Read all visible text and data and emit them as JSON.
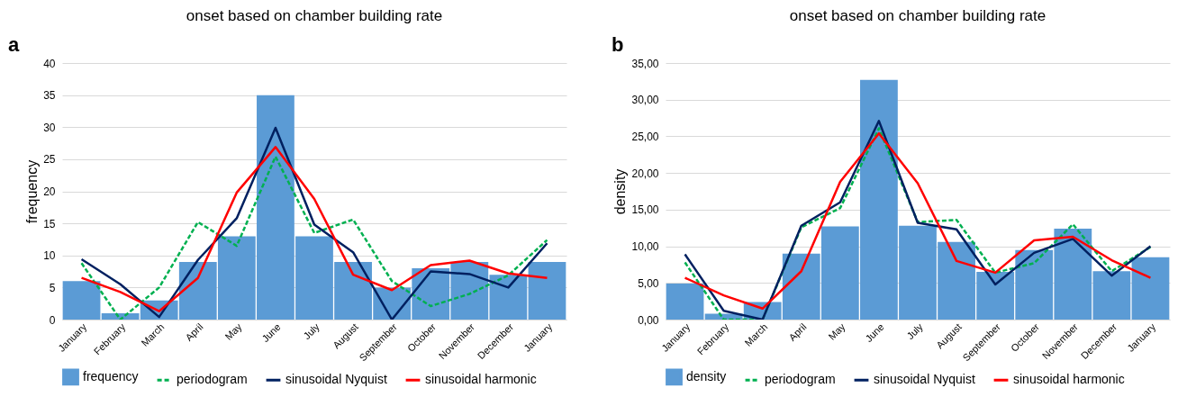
{
  "chart_data": [
    {
      "type": "bar",
      "title": "onset based on chamber building rate",
      "ylabel": "frequency",
      "annotations": [
        "a"
      ],
      "categories": [
        "January",
        "February",
        "March",
        "April",
        "May",
        "June",
        "July",
        "August",
        "September",
        "October",
        "November",
        "December",
        "January"
      ],
      "series": [
        {
          "name": "frequency",
          "color": "#5b9bd5",
          "values": [
            6,
            1,
            3,
            9,
            13,
            35,
            13,
            9,
            5,
            8,
            9,
            7,
            9
          ]
        },
        {
          "name": "periodogram",
          "type": "line",
          "line_style": "dashed",
          "color": "#00b050",
          "values": [
            8.8,
            0,
            5,
            15.2,
            11.5,
            25.4,
            13.5,
            15.6,
            6,
            2.1,
            4,
            6.9,
            12.4
          ]
        },
        {
          "name": "sinusoidal Nyquist",
          "type": "line",
          "color": "#002060",
          "values": [
            9.4,
            5.5,
            0.4,
            9.3,
            15.8,
            29.9,
            14.8,
            10.5,
            0,
            7.5,
            7.1,
            5,
            11.9
          ]
        },
        {
          "name": "sinusoidal harmonic",
          "type": "line",
          "color": "#ff0000",
          "values": [
            6.5,
            4.3,
            1.3,
            6.5,
            19.8,
            26.9,
            18.8,
            7,
            4.6,
            8.5,
            9.2,
            7.2,
            6.5
          ]
        }
      ],
      "ylim": [
        0,
        40
      ],
      "yticks": [
        0,
        5,
        10,
        15,
        20,
        25,
        30,
        35,
        40
      ],
      "grid": "y",
      "legend": "bottom"
    },
    {
      "type": "bar",
      "title": "onset based on chamber building rate",
      "ylabel": "density",
      "annotations": [
        "b"
      ],
      "categories": [
        "January",
        "February",
        "March",
        "April",
        "May",
        "June",
        "July",
        "August",
        "September",
        "October",
        "November",
        "December",
        "January"
      ],
      "series": [
        {
          "name": "density",
          "color": "#5b9bd5",
          "values": [
            4.9,
            0.8,
            2.4,
            9.0,
            12.7,
            32.7,
            12.8,
            10.6,
            6.5,
            9.5,
            12.4,
            6.6,
            8.5
          ]
        },
        {
          "name": "periodogram",
          "type": "line",
          "line_style": "dashed",
          "color": "#00b050",
          "values": [
            7.8,
            0,
            0,
            12.6,
            15.2,
            26.1,
            13.3,
            13.6,
            6.4,
            7.7,
            13.0,
            6.6,
            9.9
          ]
        },
        {
          "name": "sinusoidal Nyquist",
          "type": "line",
          "color": "#002060",
          "values": [
            8.9,
            1.2,
            0,
            12.8,
            16.0,
            27.1,
            13.2,
            12.3,
            4.8,
            9.1,
            11.0,
            6.0,
            10.0
          ]
        },
        {
          "name": "sinusoidal harmonic",
          "type": "line",
          "color": "#ff0000",
          "values": [
            5.7,
            3.3,
            1.5,
            6.6,
            18.8,
            25.4,
            18.6,
            8.0,
            6.4,
            10.8,
            11.3,
            8.1,
            5.7
          ]
        }
      ],
      "ylim": [
        0,
        35
      ],
      "yticks": [
        {
          "value": 0,
          "label": "0,00"
        },
        {
          "value": 5,
          "label": "5,00"
        },
        {
          "value": 10,
          "label": "10,00"
        },
        {
          "value": 15,
          "label": "15,00"
        },
        {
          "value": 20,
          "label": "20,00"
        },
        {
          "value": 25,
          "label": "25,00"
        },
        {
          "value": 30,
          "label": "30,00"
        },
        {
          "value": 35,
          "label": "35,00"
        }
      ],
      "grid": "y",
      "legend": "bottom"
    }
  ]
}
